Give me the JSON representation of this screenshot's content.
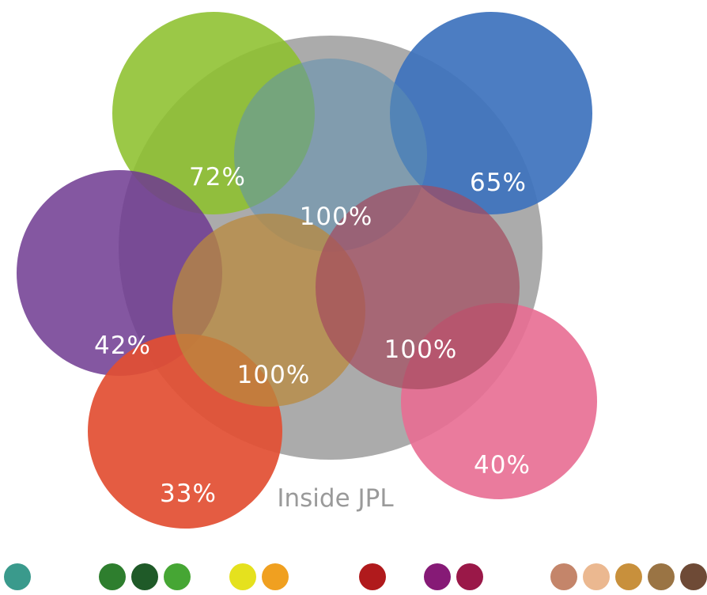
{
  "circles": [
    {
      "name": "outer-circle-inside-jpl",
      "color": "#a6a6a6",
      "opacity": 0.95
    },
    {
      "name": "green-circle",
      "color": "#8dc02d",
      "opacity": 0.88
    },
    {
      "name": "blue-circle",
      "color": "#3d72bd",
      "opacity": 0.92
    },
    {
      "name": "center-top-circle",
      "color": "#5f90b0",
      "opacity": 0.55
    },
    {
      "name": "purple-circle",
      "color": "#6e3a90",
      "opacity": 0.85
    },
    {
      "name": "pink-circle",
      "color": "#e86d92",
      "opacity": 0.9
    },
    {
      "name": "red-circle",
      "color": "#e24e32",
      "opacity": 0.92
    },
    {
      "name": "center-left-circle",
      "color": "#b98a3e",
      "opacity": 0.75
    },
    {
      "name": "center-right-circle",
      "color": "#a44a5e",
      "opacity": 0.7
    }
  ],
  "labels": {
    "green": "72%",
    "blue": "65%",
    "center_top": "100%",
    "purple": "42%",
    "center_left": "100%",
    "center_right": "100%",
    "red": "33%",
    "pink": "40%",
    "outer_caption": "Inside JPL"
  },
  "legend_swatches": [
    {
      "name": "teal-swatch",
      "color": "#3a9a8c"
    },
    {
      "name": "green-swatch-1",
      "color": "#2e7e2e"
    },
    {
      "name": "green-swatch-2",
      "color": "#1f5a28"
    },
    {
      "name": "green-swatch-3",
      "color": "#46a634"
    },
    {
      "name": "yellow-swatch",
      "color": "#e5e11e"
    },
    {
      "name": "orange-swatch",
      "color": "#f0a020"
    },
    {
      "name": "red-swatch",
      "color": "#b01a1c"
    },
    {
      "name": "purple-swatch",
      "color": "#861a76"
    },
    {
      "name": "magenta-swatch",
      "color": "#9a1848"
    },
    {
      "name": "tan-swatch-1",
      "color": "#c4856a"
    },
    {
      "name": "tan-swatch-2",
      "color": "#ebb890"
    },
    {
      "name": "tan-swatch-3",
      "color": "#c8903c"
    },
    {
      "name": "brown-swatch-1",
      "color": "#9a7444"
    },
    {
      "name": "brown-swatch-2",
      "color": "#6e4a36"
    }
  ]
}
